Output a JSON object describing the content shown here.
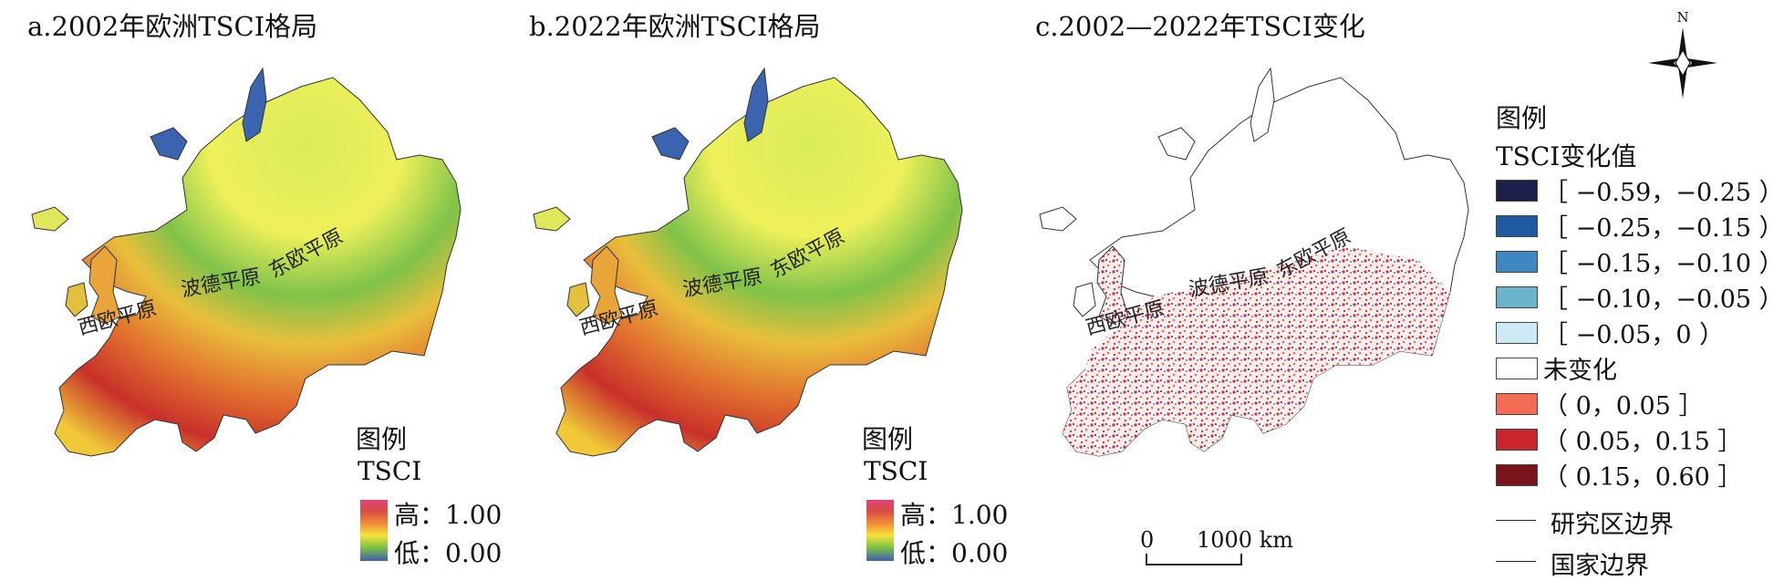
{
  "panels": [
    {
      "title": "a.2002年欧洲TSCI格局",
      "labels": {
        "east": "东欧平原",
        "pd": "波德平原",
        "west": "西欧平原"
      },
      "legend": {
        "title": "图例",
        "subtitle": "TSCI",
        "high": "高：1.00",
        "low": "低：0.00"
      }
    },
    {
      "title": "b.2022年欧洲TSCI格局",
      "labels": {
        "east": "东欧平原",
        "pd": "波德平原",
        "west": "西欧平原"
      },
      "legend": {
        "title": "图例",
        "subtitle": "TSCI",
        "high": "高：1.00",
        "low": "低：0.00"
      }
    },
    {
      "title": "c.2002—2022年TSCI变化",
      "labels": {
        "east": "东欧平原",
        "pd": "波德平原",
        "west": "西欧平原"
      },
      "scale": {
        "zero": "0",
        "dist": "1000 km"
      }
    }
  ],
  "north": "N",
  "legend_c": {
    "title": "图例",
    "subtitle": "TSCI变化值",
    "classes": [
      {
        "label": "［ −0.59，−0.25 ）",
        "color": "#1b1f4a"
      },
      {
        "label": "［ −0.25，−0.15 ）",
        "color": "#1f5aa0"
      },
      {
        "label": "［ −0.15，−0.10 ）",
        "color": "#3f87c0"
      },
      {
        "label": "［ −0.10，−0.05 ）",
        "color": "#6ab4cb"
      },
      {
        "label": "［ −0.05，0 ）",
        "color": "#cde9f3"
      },
      {
        "label": "未变化",
        "color": "#ffffff"
      },
      {
        "label": "（ 0，0.05 ］",
        "color": "#f26c56"
      },
      {
        "label": "（ 0.05，0.15 ］",
        "color": "#c9252e"
      },
      {
        "label": "（ 0.15，0.60 ］",
        "color": "#7a141c"
      }
    ],
    "boundary_study": "研究区边界",
    "boundary_country": "国家边界"
  }
}
